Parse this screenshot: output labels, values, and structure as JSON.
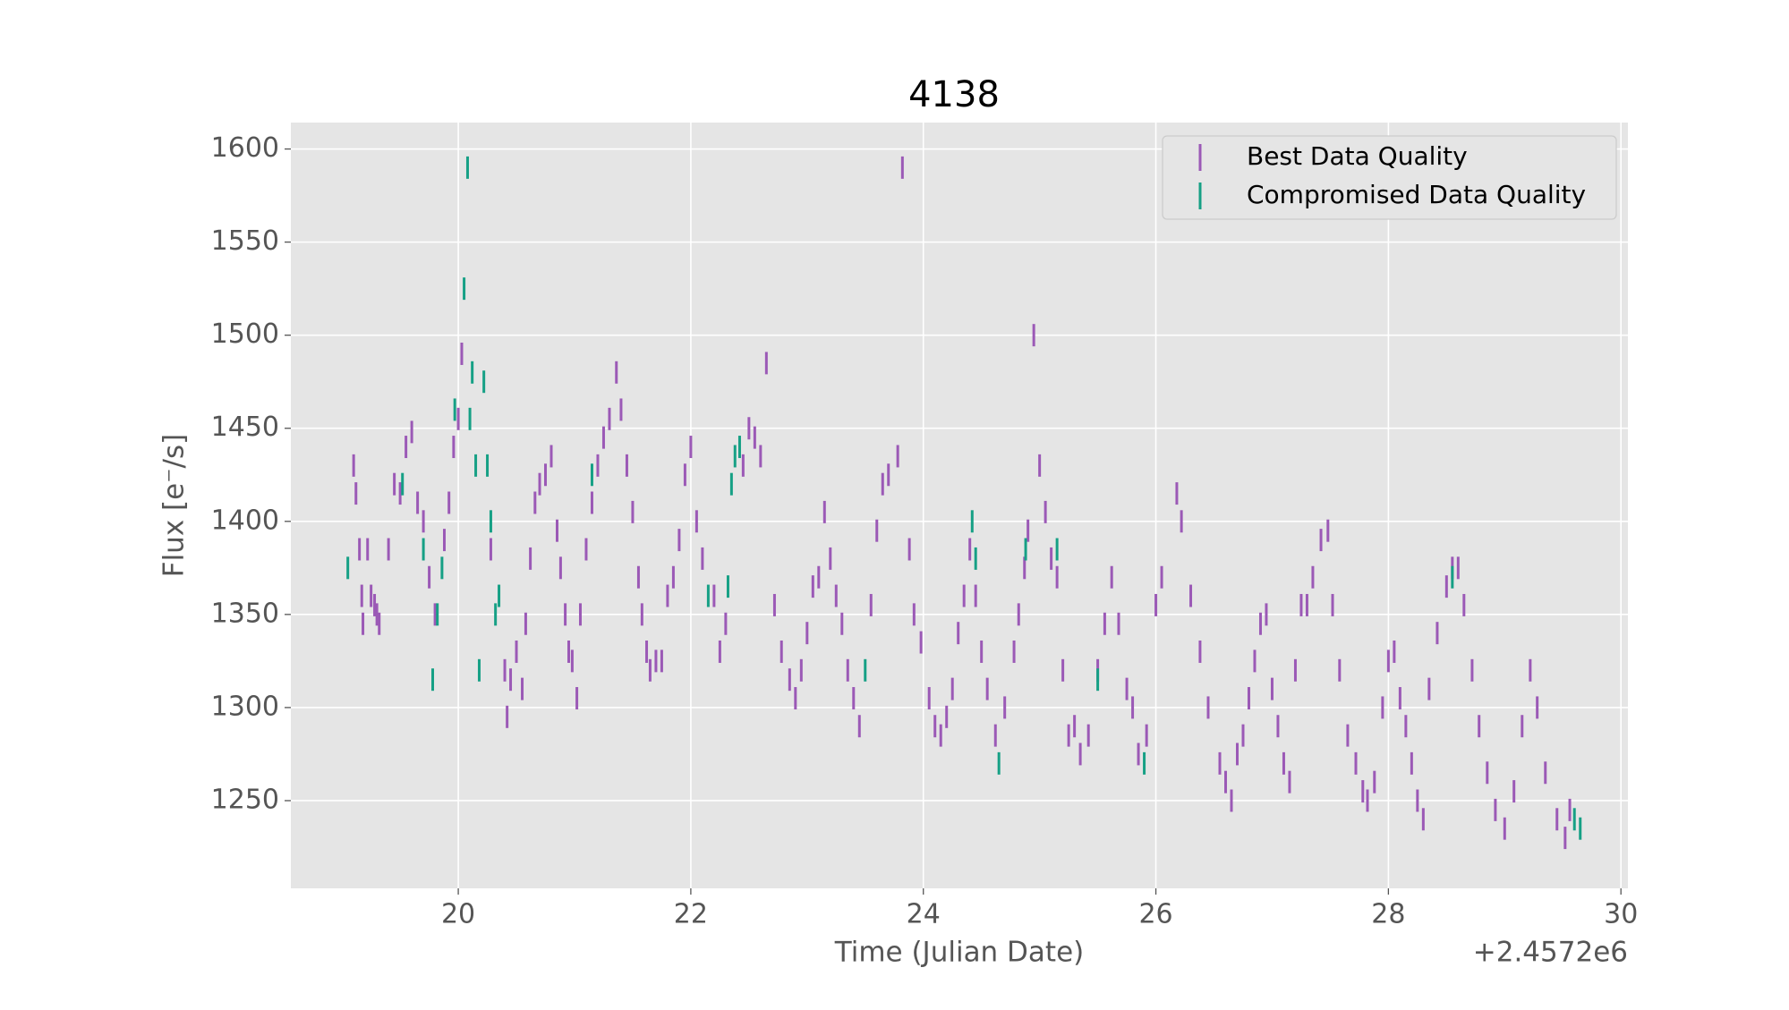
{
  "chart_data": {
    "type": "errorbar",
    "title": "4138",
    "xlabel": "Time (Julian Date)",
    "ylabel": "Flux [e⁻/s]",
    "x_offset_label": "+2.4572e6",
    "xlim": [
      18.56,
      30.06
    ],
    "ylim": [
      1202.9,
      1614.2
    ],
    "xticks": [
      20,
      22,
      24,
      26,
      28,
      30
    ],
    "yticks": [
      1250,
      1300,
      1350,
      1400,
      1450,
      1500,
      1550,
      1600
    ],
    "grid": true,
    "legend": "upper right",
    "series": [
      {
        "name": "Best Data Quality",
        "color": "#9b59b6",
        "yerr": 6,
        "x": [
          19.1,
          19.12,
          19.15,
          19.17,
          19.18,
          19.22,
          19.25,
          19.28,
          19.3,
          19.32,
          19.4,
          19.45,
          19.5,
          19.55,
          19.6,
          19.65,
          19.7,
          19.75,
          19.8,
          19.88,
          19.92,
          19.96,
          20.0,
          20.03,
          20.28,
          20.4,
          20.42,
          20.45,
          20.5,
          20.55,
          20.58,
          20.62,
          20.66,
          20.7,
          20.75,
          20.8,
          20.85,
          20.88,
          20.92,
          20.95,
          20.98,
          21.02,
          21.05,
          21.1,
          21.15,
          21.2,
          21.25,
          21.3,
          21.36,
          21.4,
          21.45,
          21.5,
          21.55,
          21.58,
          21.62,
          21.65,
          21.7,
          21.75,
          21.8,
          21.85,
          21.9,
          21.95,
          22.0,
          22.05,
          22.1,
          22.2,
          22.25,
          22.3,
          22.45,
          22.5,
          22.55,
          22.6,
          22.65,
          22.72,
          22.78,
          22.85,
          22.9,
          22.95,
          23.0,
          23.05,
          23.1,
          23.15,
          23.2,
          23.25,
          23.3,
          23.35,
          23.4,
          23.45,
          23.55,
          23.6,
          23.65,
          23.7,
          23.78,
          23.82,
          23.88,
          23.92,
          23.98,
          24.05,
          24.1,
          24.15,
          24.2,
          24.25,
          24.3,
          24.35,
          24.4,
          24.45,
          24.5,
          24.55,
          24.62,
          24.7,
          24.78,
          24.82,
          24.87,
          24.9,
          24.95,
          25.0,
          25.05,
          25.1,
          25.15,
          25.2,
          25.25,
          25.3,
          25.35,
          25.42,
          25.5,
          25.56,
          25.62,
          25.68,
          25.75,
          25.8,
          25.85,
          25.92,
          26.0,
          26.05,
          26.18,
          26.22,
          26.3,
          26.38,
          26.45,
          26.55,
          26.6,
          26.65,
          26.7,
          26.75,
          26.8,
          26.85,
          26.9,
          26.95,
          27.0,
          27.05,
          27.1,
          27.15,
          27.2,
          27.25,
          27.3,
          27.35,
          27.42,
          27.48,
          27.52,
          27.58,
          27.65,
          27.72,
          27.78,
          27.82,
          27.88,
          27.95,
          28.0,
          28.05,
          28.1,
          28.15,
          28.2,
          28.25,
          28.3,
          28.35,
          28.42,
          28.5,
          28.55,
          28.6,
          28.65,
          28.72,
          28.78,
          28.85,
          28.92,
          29.0,
          29.08,
          29.15,
          29.22,
          29.28,
          29.35,
          29.45,
          29.52,
          29.56
        ],
        "values": [
          1430,
          1415,
          1385,
          1360,
          1345,
          1385,
          1360,
          1355,
          1350,
          1345,
          1385,
          1420,
          1415,
          1440,
          1448,
          1410,
          1400,
          1370,
          1350,
          1390,
          1410,
          1440,
          1455,
          1490,
          1385,
          1320,
          1295,
          1315,
          1330,
          1310,
          1345,
          1380,
          1410,
          1420,
          1425,
          1435,
          1395,
          1375,
          1350,
          1330,
          1325,
          1305,
          1350,
          1385,
          1410,
          1430,
          1445,
          1455,
          1480,
          1460,
          1430,
          1405,
          1370,
          1350,
          1330,
          1320,
          1325,
          1325,
          1360,
          1370,
          1390,
          1425,
          1440,
          1400,
          1380,
          1360,
          1330,
          1345,
          1430,
          1450,
          1445,
          1435,
          1485,
          1355,
          1330,
          1315,
          1305,
          1320,
          1340,
          1365,
          1370,
          1405,
          1380,
          1360,
          1345,
          1320,
          1305,
          1290,
          1355,
          1395,
          1420,
          1425,
          1435,
          1590,
          1385,
          1350,
          1335,
          1305,
          1290,
          1285,
          1295,
          1310,
          1340,
          1360,
          1385,
          1360,
          1330,
          1310,
          1285,
          1300,
          1330,
          1350,
          1375,
          1395,
          1500,
          1430,
          1405,
          1380,
          1370,
          1320,
          1285,
          1290,
          1275,
          1285,
          1320,
          1345,
          1370,
          1345,
          1310,
          1300,
          1275,
          1285,
          1355,
          1370,
          1415,
          1400,
          1360,
          1330,
          1300,
          1270,
          1260,
          1250,
          1275,
          1285,
          1305,
          1325,
          1345,
          1350,
          1310,
          1290,
          1270,
          1260,
          1320,
          1355,
          1355,
          1370,
          1390,
          1395,
          1355,
          1320,
          1285,
          1270,
          1255,
          1250,
          1260,
          1300,
          1325,
          1330,
          1305,
          1290,
          1270,
          1250,
          1240,
          1310,
          1340,
          1365,
          1375,
          1375,
          1355,
          1320,
          1290,
          1265,
          1245,
          1235,
          1255,
          1290,
          1320,
          1300,
          1265,
          1240,
          1230,
          1245
        ]
      },
      {
        "name": "Compromised Data Quality",
        "color": "#16a085",
        "yerr": 6,
        "x": [
          19.05,
          19.52,
          19.7,
          19.78,
          19.82,
          19.86,
          19.97,
          20.05,
          20.08,
          20.1,
          20.12,
          20.15,
          20.18,
          20.22,
          20.25,
          20.28,
          20.32,
          20.35,
          21.15,
          22.15,
          22.32,
          22.35,
          22.38,
          22.42,
          23.5,
          24.42,
          24.45,
          24.65,
          24.88,
          25.15,
          25.5,
          25.9,
          28.55,
          29.6,
          29.65
        ],
        "values": [
          1375,
          1420,
          1385,
          1315,
          1350,
          1375,
          1460,
          1525,
          1590,
          1455,
          1480,
          1430,
          1320,
          1475,
          1430,
          1400,
          1350,
          1360,
          1425,
          1360,
          1365,
          1420,
          1435,
          1440,
          1320,
          1400,
          1380,
          1270,
          1385,
          1385,
          1315,
          1270,
          1370,
          1240,
          1235
        ]
      }
    ]
  }
}
